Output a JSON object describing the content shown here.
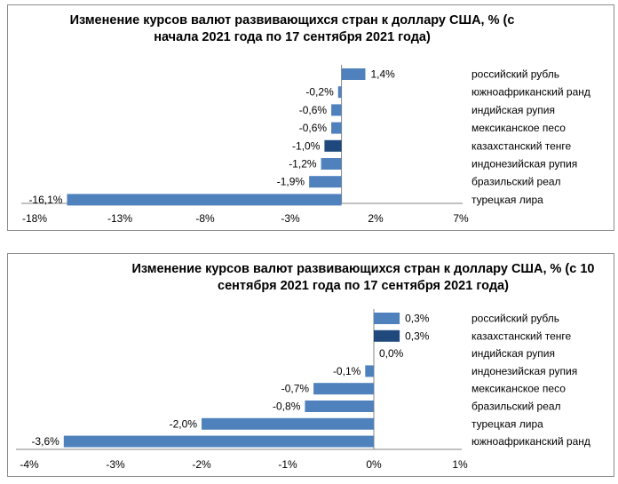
{
  "chart_data": [
    {
      "type": "bar",
      "orientation": "horizontal",
      "title": "Изменение курсов валют развивающихся стран к доллару США, % (с начала 2021 года по 17 сентября 2021 года)",
      "categories": [
        "российский рубль",
        "южноафриканский ранд",
        "индийская рупия",
        "мексиканское песо",
        "казахстанский тенге",
        "индонезийская рупия",
        "бразильский реал",
        "турецкая лира"
      ],
      "values": [
        1.4,
        -0.2,
        -0.6,
        -0.6,
        -1.0,
        -1.2,
        -1.9,
        -16.1
      ],
      "data_labels": [
        "1,4%",
        "-0,2%",
        "-0,6%",
        "-0,6%",
        "-1,0%",
        "-1,2%",
        "-1,9%",
        "-16,1%"
      ],
      "highlight": "казахстанский тенге",
      "xlim": [
        -18,
        7
      ],
      "xticks": [
        "-18%",
        "-13%",
        "-8%",
        "-3%",
        "2%",
        "7%"
      ],
      "xtick_values": [
        -18,
        -13,
        -8,
        -3,
        2,
        7
      ]
    },
    {
      "type": "bar",
      "orientation": "horizontal",
      "title": "Изменение курсов валют развивающихся стран к доллару США, % (с 10 сентября 2021 года по 17 сентября 2021 года)",
      "categories": [
        "российский рубль",
        "казахстанский тенге",
        "индийская рупия",
        "индонезийская рупия",
        "мексиканское песо",
        "бразильский реал",
        "турецкая лира",
        "южноафриканский ранд"
      ],
      "values": [
        0.3,
        0.3,
        0.0,
        -0.1,
        -0.7,
        -0.8,
        -2.0,
        -3.6
      ],
      "data_labels": [
        "0,3%",
        "0,3%",
        "0,0%",
        "-0,1%",
        "-0,7%",
        "-0,8%",
        "-2,0%",
        "-3,6%"
      ],
      "highlight": "казахстанский тенге",
      "xlim": [
        -4,
        1
      ],
      "xticks": [
        "-4%",
        "-3%",
        "-2%",
        "-1%",
        "0%",
        "1%"
      ],
      "xtick_values": [
        -4,
        -3,
        -2,
        -1,
        0,
        1
      ]
    }
  ],
  "colors": {
    "bar": "#4f81bd",
    "highlight": "#1f497d",
    "axis": "#868686"
  }
}
